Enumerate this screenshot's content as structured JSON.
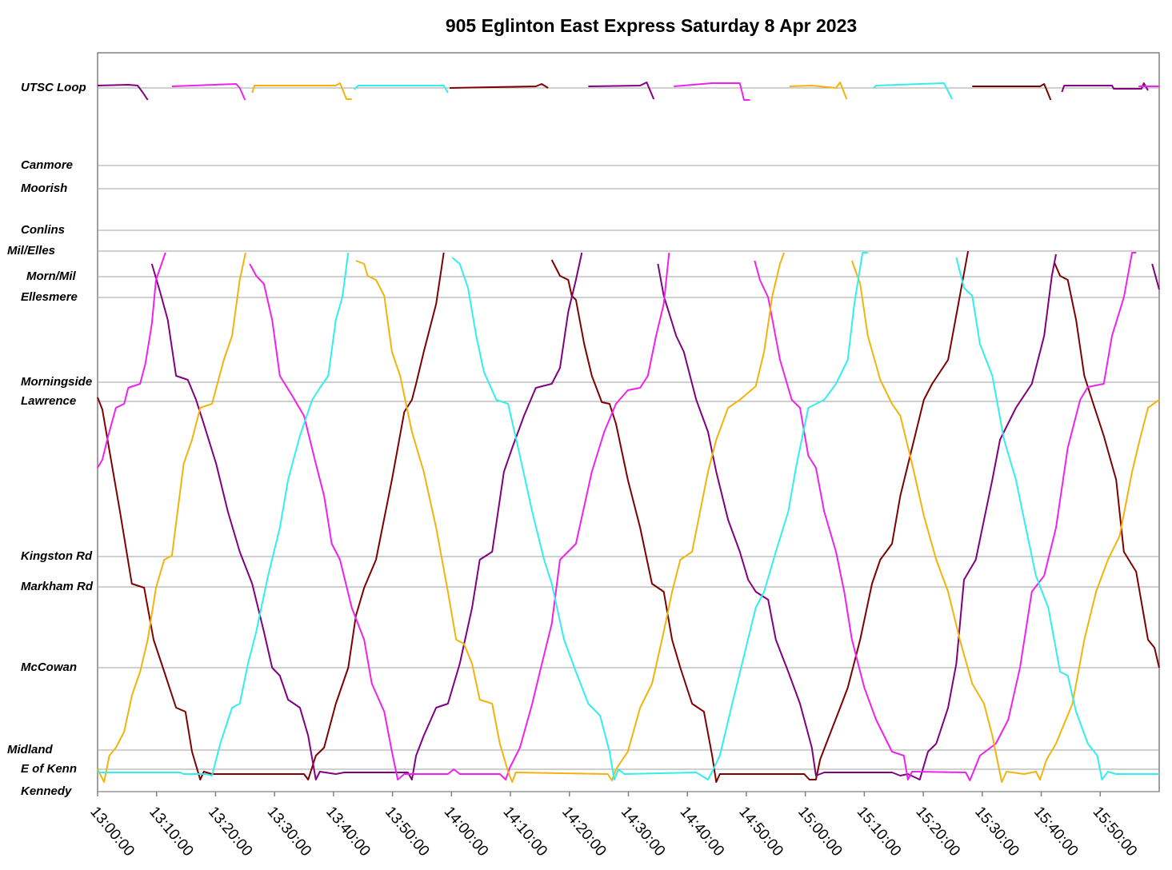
{
  "chart_data": {
    "type": "line",
    "title": "905 Eglinton East Express Saturday 8 Apr 2023",
    "xlim": [
      780,
      960
    ],
    "xticks": [
      {
        "value": 780,
        "label": "13:00:00"
      },
      {
        "value": 790,
        "label": "13:10:00"
      },
      {
        "value": 800,
        "label": "13:20:00"
      },
      {
        "value": 810,
        "label": "13:30:00"
      },
      {
        "value": 820,
        "label": "13:40:00"
      },
      {
        "value": 830,
        "label": "13:50:00"
      },
      {
        "value": 840,
        "label": "14:00:00"
      },
      {
        "value": 850,
        "label": "14:10:00"
      },
      {
        "value": 860,
        "label": "14:20:00"
      },
      {
        "value": 870,
        "label": "14:30:00"
      },
      {
        "value": 880,
        "label": "14:40:00"
      },
      {
        "value": 890,
        "label": "14:50:00"
      },
      {
        "value": 900,
        "label": "15:00:00"
      },
      {
        "value": 910,
        "label": "15:10:00"
      },
      {
        "value": 920,
        "label": "15:20:00"
      },
      {
        "value": 930,
        "label": "15:30:00"
      },
      {
        "value": 940,
        "label": "15:40:00"
      },
      {
        "value": 950,
        "label": "15:50:00"
      }
    ],
    "ylim": [
      0,
      92.4
    ],
    "yticks": [
      {
        "value": 0,
        "label": "Kennedy"
      },
      {
        "value": 2.8,
        "label": "E of Kenn"
      },
      {
        "value": 5.2,
        "label": "Midland"
      },
      {
        "value": 15.5,
        "label": "McCowan"
      },
      {
        "value": 25.6,
        "label": "Markham Rd"
      },
      {
        "value": 29.4,
        "label": "Kingston Rd"
      },
      {
        "value": 48.8,
        "label": "Lawrence"
      },
      {
        "value": 51.2,
        "label": "Morningside"
      },
      {
        "value": 61.8,
        "label": "Ellesmere"
      },
      {
        "value": 64.4,
        "label": "Morn/Mil"
      },
      {
        "value": 67.6,
        "label": "Mil/Elles"
      },
      {
        "value": 70.2,
        "label": "Conlins"
      },
      {
        "value": 75.4,
        "label": "Moorish"
      },
      {
        "value": 78.3,
        "label": "Canmore"
      },
      {
        "value": 88,
        "label": "UTSC Loop"
      }
    ],
    "grid": true,
    "series": [
      {
        "color": "#7f0000",
        "x": [
          780.0,
          780.8,
          783.8,
          785.8,
          787.9,
          789.5,
          791.3,
          793.3,
          794.9,
          796.0,
          797.4,
          798.0,
          799.4,
          815.0,
          815.7,
          817.0,
          818.4,
          820.4,
          822.5,
          823.8,
          825.2,
          827.2,
          829.9,
          832.0,
          833.3,
          834.0,
          835.3,
          837.4,
          838.7,
          null,
          839.7,
          854.3,
          855.3,
          856.4,
          null,
          857.0,
          858.4,
          859.8,
          860.4,
          861.1,
          862.5,
          863.8,
          865.5,
          866.8,
          867.9,
          869.9,
          872.0,
          874.0,
          876.0,
          877.4,
          878.8,
          880.8,
          882.8,
          884.2,
          884.9,
          885.5,
          899.8,
          900.7,
          901.8,
          902.5,
          903.8,
          905.9,
          907.2,
          909.3,
          911.3,
          912.7,
          914.7,
          916.1,
          918.1,
          920.1,
          921.5,
          924.2,
          926.2,
          927.6,
          null,
          928.3,
          939.8,
          940.5,
          941.6,
          null,
          942.2,
          943.2,
          944.5,
          945.9,
          947.3,
          948.6,
          950.6,
          952.7,
          954.0,
          956.1,
          958.1,
          959.2,
          960.0
        ],
        "values": [
          49.3,
          47.8,
          35,
          26,
          25.5,
          19,
          15,
          10.5,
          10,
          5,
          1.5,
          2.5,
          2.2,
          2.2,
          1.5,
          4.5,
          5.5,
          11,
          15.5,
          22,
          25.5,
          29,
          39,
          47.5,
          49,
          51,
          55,
          61,
          67.4,
          null,
          88,
          88.2,
          88.5,
          88,
          null,
          66.5,
          64.5,
          64,
          62,
          61.5,
          56,
          52,
          48.7,
          48.5,
          46,
          39,
          33,
          26,
          25,
          19,
          15.5,
          11,
          10,
          4.5,
          1.2,
          2.2,
          2.2,
          1.5,
          1.5,
          4,
          6.5,
          10.5,
          13,
          19,
          26,
          29,
          31,
          37,
          43,
          49,
          51,
          54,
          62,
          67.6,
          null,
          88.2,
          88.2,
          88.5,
          86.5,
          null,
          66.2,
          64.5,
          64,
          59,
          52,
          49,
          44.5,
          39,
          30,
          27.5,
          19,
          18,
          15.5
        ]
      },
      {
        "color": "#800080",
        "x": [
          780.0,
          785.2,
          786.8,
          787.6,
          788.5,
          null,
          789.2,
          790.6,
          791.9,
          793.3,
          795.3,
          796.7,
          798.0,
          800.1,
          802.1,
          804.1,
          806.2,
          808.2,
          809.6,
          810.9,
          812.3,
          814.3,
          815.7,
          817.0,
          817.7,
          820.4,
          821.8,
          832.6,
          833.3,
          834.0,
          835.3,
          837.4,
          839.4,
          841.4,
          843.5,
          844.8,
          846.9,
          848.9,
          850.3,
          852.3,
          854.3,
          857.0,
          858.4,
          859.8,
          861.1,
          862.1,
          null,
          863.2,
          872.0,
          873.1,
          874.3,
          null,
          875.0,
          876.0,
          878.1,
          879.4,
          881.5,
          883.5,
          884.9,
          886.9,
          888.9,
          890.3,
          891.6,
          893.7,
          895.0,
          897.1,
          899.1,
          901.1,
          901.8,
          903.2,
          914.7,
          916.1,
          917.4,
          919.4,
          920.8,
          922.2,
          924.2,
          925.6,
          926.9,
          928.9,
          931.7,
          933.0,
          935.7,
          938.4,
          940.5,
          941.8,
          942.5,
          null,
          943.5,
          943.9,
          952.0,
          952.3,
          957.0,
          957.4,
          958.1,
          null,
          958.8,
          960.0
        ],
        "values": [
          88.3,
          88.4,
          88.3,
          87.5,
          86.5,
          null,
          66,
          62.5,
          59,
          52,
          51.5,
          49,
          46,
          41,
          35,
          30,
          26,
          20,
          15.5,
          14.5,
          11.5,
          10.5,
          7,
          1.5,
          2.5,
          2.2,
          2.4,
          2.4,
          1.5,
          4.5,
          7,
          10.5,
          11,
          16,
          23,
          29,
          30,
          40,
          43,
          47,
          50.5,
          51,
          53,
          60,
          64,
          67.4,
          null,
          88.2,
          88.3,
          88.7,
          86.6,
          null,
          66,
          62,
          57,
          55,
          49,
          45,
          40,
          34,
          30,
          26.5,
          25,
          24,
          19,
          15,
          11,
          5.5,
          2,
          2.4,
          2.4,
          2,
          2.2,
          1.5,
          5,
          6,
          10.5,
          16,
          26.5,
          29,
          39,
          44,
          48,
          51,
          57,
          64.5,
          67.2,
          null,
          87.5,
          88.3,
          88.3,
          87.9,
          87.9,
          88.6,
          87.7,
          null,
          66,
          62.8
        ]
      },
      {
        "color": "#ee22ee",
        "x": [
          780.0,
          780.8,
          781.8,
          783.1,
          784.5,
          785.2,
          787.2,
          788.1,
          789.2,
          789.9,
          791.5,
          null,
          792.6,
          803.5,
          804.1,
          805.0,
          null,
          805.8,
          806.9,
          808.2,
          809.6,
          810.9,
          813.0,
          815.0,
          817.0,
          818.4,
          819.7,
          821.1,
          823.1,
          825.2,
          826.5,
          828.6,
          829.9,
          830.9,
          832.0,
          839.4,
          840.4,
          841.4,
          848.2,
          849.2,
          849.9,
          851.6,
          853.7,
          855.0,
          857.0,
          858.4,
          861.1,
          863.8,
          865.9,
          867.9,
          869.9,
          872.0,
          873.3,
          874.7,
          876.0,
          876.9,
          null,
          877.7,
          884.2,
          888.9,
          889.6,
          890.6,
          null,
          891.4,
          892.3,
          893.7,
          895.7,
          897.7,
          899.1,
          900.5,
          901.8,
          903.2,
          905.2,
          906.6,
          907.9,
          910.0,
          912.0,
          914.7,
          916.7,
          917.4,
          918.1,
          927.2,
          927.9,
          929.6,
          932.3,
          934.4,
          936.4,
          938.4,
          940.5,
          942.5,
          944.5,
          946.6,
          947.9,
          950.6,
          952.0,
          954.0,
          955.4,
          956.1,
          null,
          956.5,
          960.0
        ],
        "values": [
          40.5,
          41.5,
          44.5,
          48,
          48.5,
          50.5,
          51,
          53.5,
          58.5,
          64,
          67.4,
          null,
          88.2,
          88.5,
          88,
          86.5,
          null,
          66,
          64.5,
          63.5,
          59,
          52,
          49.5,
          47,
          41,
          37,
          31,
          29,
          23,
          19,
          13.5,
          10,
          5,
          1.5,
          2.2,
          2.2,
          2.8,
          2.2,
          2.2,
          1.5,
          3,
          5.5,
          11,
          15,
          21,
          29,
          31,
          40,
          45,
          48.5,
          50.2,
          50.5,
          52,
          57,
          61,
          67.4,
          null,
          88.2,
          88.6,
          88.6,
          86.5,
          86.5,
          null,
          66.4,
          64,
          61.8,
          54,
          49,
          48,
          42,
          40.5,
          35,
          30,
          25,
          19,
          13,
          9,
          5,
          4.5,
          1.5,
          2.5,
          2.4,
          1.4,
          4.5,
          6,
          9,
          15.5,
          25,
          27,
          33,
          43,
          49,
          50.6,
          51,
          57,
          61.8,
          67.4,
          67.4,
          null,
          88.2,
          88.2
        ]
      },
      {
        "color": "#f2b40c",
        "x": [
          780.0,
          781.1,
          782.0,
          783.1,
          784.5,
          785.8,
          787.2,
          788.5,
          789.9,
          791.3,
          792.6,
          794.6,
          796.0,
          797.4,
          799.4,
          801.4,
          802.8,
          804.1,
          805.1,
          null,
          806.2,
          806.6,
          820.4,
          821.1,
          822.2,
          823.1,
          null,
          823.8,
          825.2,
          825.8,
          827.2,
          828.6,
          829.9,
          831.3,
          833.3,
          835.3,
          837.4,
          839.4,
          840.8,
          842.1,
          843.5,
          844.8,
          846.9,
          848.2,
          849.6,
          850.3,
          850.9,
          866.5,
          867.2,
          867.9,
          869.9,
          872.0,
          874.0,
          876.0,
          877.4,
          878.8,
          880.8,
          883.5,
          884.9,
          886.9,
          888.9,
          891.6,
          893.0,
          894.4,
          895.7,
          896.4,
          null,
          897.3,
          901.1,
          905.2,
          905.9,
          907.0,
          null,
          907.9,
          909.3,
          910.6,
          912.7,
          914.7,
          916.1,
          918.1,
          920.1,
          922.2,
          924.2,
          926.2,
          928.3,
          930.3,
          931.7,
          933.3,
          934.1,
          937.1,
          939.1,
          939.8,
          940.9,
          942.5,
          945.3,
          947.3,
          949.3,
          951.3,
          953.3,
          955.4,
          956.7,
          958.1,
          960.0
        ],
        "values": [
          2.8,
          1.2,
          4.5,
          5.5,
          7.5,
          12,
          15,
          19,
          25.5,
          29,
          29.5,
          41,
          44,
          48,
          48.5,
          54,
          57,
          64,
          67.4,
          null,
          87.4,
          88.3,
          88.3,
          88.6,
          86.6,
          86.6,
          null,
          66.4,
          66,
          64.5,
          64,
          62,
          55,
          52,
          45,
          40,
          33,
          25,
          19,
          18.5,
          16,
          11.5,
          11,
          6,
          2.5,
          1.2,
          2.4,
          2.2,
          1.4,
          2.8,
          5,
          10.5,
          13.5,
          20,
          25,
          29,
          30,
          40,
          44,
          48,
          49,
          50.7,
          55,
          62,
          66,
          67.4,
          null,
          88.2,
          88.3,
          88,
          88.7,
          86.6,
          null,
          66.4,
          63.5,
          57,
          51.5,
          48.5,
          47,
          41,
          34.5,
          29,
          25,
          19,
          13.5,
          11,
          7,
          1.2,
          2.5,
          2.2,
          2.5,
          1.5,
          4,
          6,
          11,
          19,
          25,
          29,
          32,
          40,
          44,
          48,
          49
        ]
      },
      {
        "color": "#33eeee",
        "x": [
          780.0,
          794.0,
          794.6,
          798.4,
          799.4,
          800.8,
          802.8,
          804.1,
          805.5,
          806.9,
          808.9,
          810.9,
          812.3,
          814.3,
          816.4,
          817.7,
          819.1,
          820.4,
          821.5,
          822.5,
          null,
          823.5,
          824.2,
          838.7,
          839.4,
          null,
          840.1,
          841.4,
          842.8,
          844.2,
          845.5,
          847.6,
          849.6,
          851.6,
          853.7,
          855.7,
          857.0,
          859.1,
          861.1,
          863.2,
          865.2,
          866.8,
          867.6,
          868.3,
          869.3,
          881.5,
          883.5,
          884.2,
          885.5,
          887.6,
          889.6,
          891.6,
          893.0,
          895.0,
          897.1,
          898.4,
          900.5,
          903.2,
          905.2,
          907.2,
          908.3,
          909.7,
          910.6,
          null,
          911.6,
          912.0,
          923.5,
          924.9,
          null,
          925.6,
          926.9,
          928.3,
          929.6,
          931.7,
          933.7,
          935.7,
          937.1,
          939.1,
          941.2,
          943.2,
          944.5,
          945.9,
          947.9,
          949.5,
          950.3,
          951.3,
          952.7,
          960.0
        ],
        "values": [
          2.4,
          2.4,
          2.2,
          2.2,
          2,
          6,
          10.5,
          11,
          16,
          20,
          27,
          33,
          39,
          44.5,
          49,
          50.5,
          52,
          59,
          61.8,
          67.4,
          null,
          87.8,
          88.3,
          88.3,
          87.4,
          null,
          66.8,
          66,
          63,
          57,
          52.5,
          49,
          48.5,
          42,
          35,
          29,
          26,
          19,
          15,
          11,
          9.5,
          5,
          1.5,
          2.8,
          2.2,
          2.4,
          1.5,
          2.5,
          4.5,
          11,
          17,
          23,
          25,
          30,
          35,
          40.5,
          48,
          49,
          51,
          54,
          61,
          67.4,
          67.4,
          null,
          88,
          88.3,
          88.6,
          86.6,
          null,
          66.8,
          63,
          62,
          56,
          52,
          44,
          39,
          34,
          27,
          23,
          15,
          14.5,
          10,
          6,
          4.5,
          1.5,
          2.5,
          2.2,
          2.2
        ]
      }
    ]
  }
}
